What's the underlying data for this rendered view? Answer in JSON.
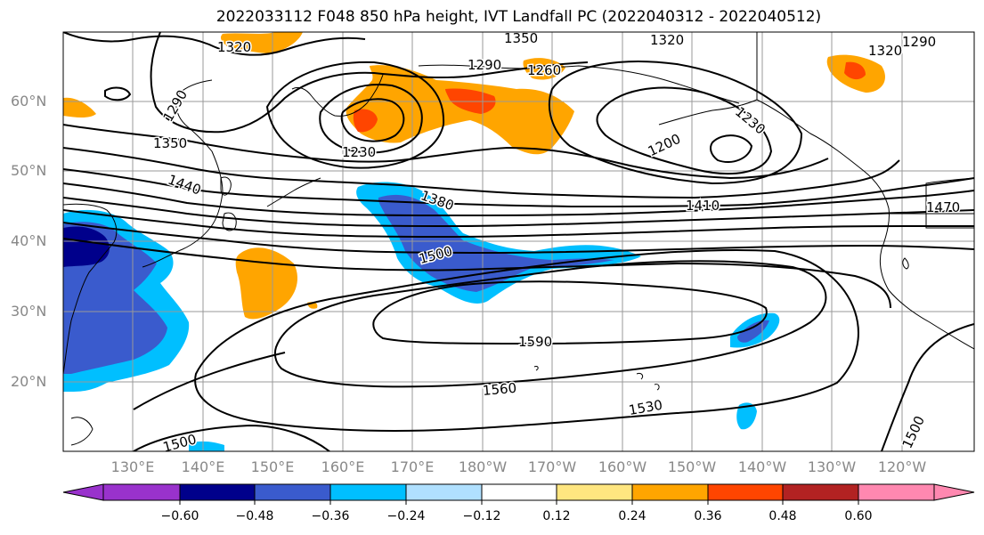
{
  "title": "2022033112 F048 850 hPa height, IVT Landfall PC (2022040312 - 2022040512)",
  "lat_labels": [
    "60°N",
    "50°N",
    "40°N",
    "30°N",
    "20°N"
  ],
  "lon_labels": [
    "130°E",
    "140°E",
    "150°E",
    "160°E",
    "170°E",
    "180°W",
    "170°W",
    "160°W",
    "150°W",
    "140°W",
    "130°W",
    "120°W"
  ],
  "contour_labels": [
    "1320",
    "1350",
    "1320",
    "1290",
    "1290",
    "1260",
    "1320",
    "1290",
    "1350",
    "1230",
    "1200",
    "1230",
    "1440",
    "1380",
    "1410",
    "1470",
    "1500",
    "1590",
    "1560",
    "1530",
    "1500",
    "1500"
  ],
  "colorbar": {
    "ticks": [
      "−0.60",
      "−0.48",
      "−0.36",
      "−0.24",
      "−0.12",
      "0.12",
      "0.24",
      "0.36",
      "0.48",
      "0.60"
    ],
    "colors": [
      "#9932cc",
      "#00008b",
      "#3a5bcd",
      "#00bfff",
      "#b0e0ff",
      "#ffffff",
      "#ffe680",
      "#ffa500",
      "#ff4500",
      "#b22222",
      "#ff88b0"
    ]
  }
}
